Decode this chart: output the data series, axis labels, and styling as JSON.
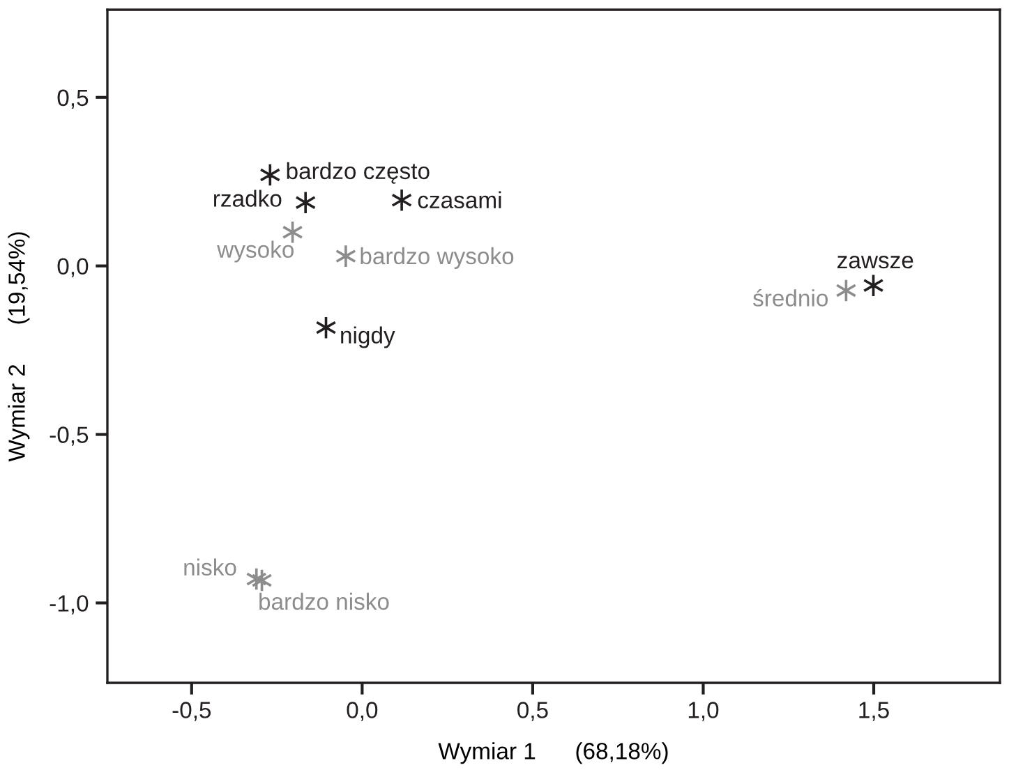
{
  "chart_data": {
    "type": "scatter",
    "xlabel": "Wymiar 1      (68,18%)",
    "ylabel": "Wymiar 2      (19,54%)",
    "xlim": [
      -0.747,
      1.87
    ],
    "ylim": [
      -1.237,
      0.76
    ],
    "xticks": [
      {
        "value": -0.5,
        "label": "-0,5"
      },
      {
        "value": 0.0,
        "label": "0,0"
      },
      {
        "value": 0.5,
        "label": "0,5"
      },
      {
        "value": 1.0,
        "label": "1,0"
      },
      {
        "value": 1.5,
        "label": "1,5"
      }
    ],
    "yticks": [
      {
        "value": -1.0,
        "label": "-1,0"
      },
      {
        "value": -0.5,
        "label": "-0,5"
      },
      {
        "value": 0.0,
        "label": "0,0"
      },
      {
        "value": 0.5,
        "label": "0,5"
      }
    ],
    "grid": false,
    "legend": false,
    "marker": "cross",
    "series": [
      {
        "color": "#231f20",
        "x": [
          -0.27,
          -0.166,
          0.116,
          -0.106,
          1.499
        ],
        "values": [
          0.27,
          0.188,
          0.195,
          -0.183,
          -0.058
        ]
      },
      {
        "color": "#8c8c8c",
        "x": [
          -0.204,
          -0.048,
          1.419,
          -0.31,
          -0.294
        ],
        "values": [
          0.1,
          0.029,
          -0.073,
          -0.929,
          -0.933
        ]
      }
    ],
    "annotations": [
      {
        "text": "bardzo często",
        "x": -0.27,
        "y": 0.27
      },
      {
        "text": "rzadko",
        "x": -0.166,
        "y": 0.188
      },
      {
        "text": "czasami",
        "x": 0.116,
        "y": 0.195
      },
      {
        "text": "nigdy",
        "x": -0.106,
        "y": -0.183
      },
      {
        "text": "zawsze",
        "x": 1.499,
        "y": -0.058
      },
      {
        "text": "wysoko",
        "x": -0.204,
        "y": 0.1
      },
      {
        "text": "bardzo wysoko",
        "x": -0.048,
        "y": 0.029
      },
      {
        "text": "średnio",
        "x": 1.419,
        "y": -0.073
      },
      {
        "text": "nisko",
        "x": -0.31,
        "y": -0.929
      },
      {
        "text": "bardzo nisko",
        "x": -0.294,
        "y": -0.933
      }
    ]
  }
}
